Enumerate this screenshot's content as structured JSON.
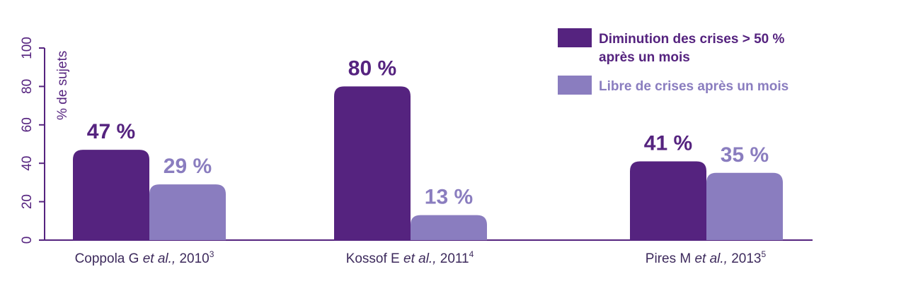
{
  "chart_data": {
    "type": "bar",
    "ylabel": "% de sujets",
    "ylim": [
      0,
      100
    ],
    "yticks": [
      "0",
      "20",
      "40",
      "60",
      "80",
      "100"
    ],
    "grid": false,
    "legend_position": "top-right",
    "categories": [
      {
        "author": "Coppola G",
        "etal": "et al.,",
        "year": "2010",
        "ref": "3"
      },
      {
        "author": "Kossof E",
        "etal": "et al.,",
        "year": "2011",
        "ref": "4"
      },
      {
        "author": "Pires M",
        "etal": "et al.,",
        "year": "2013",
        "ref": "5"
      }
    ],
    "series": [
      {
        "name": "Diminution des crises > 50 % après un mois",
        "name_lines": [
          "Diminution des crises > 50 %",
          "après un mois"
        ],
        "color": "#55237f",
        "values": [
          47,
          80,
          41
        ],
        "labels": [
          "47 %",
          "80 %",
          "41 %"
        ]
      },
      {
        "name": "Libre de crises après un mois",
        "name_lines": [
          "Libre de crises après un mois"
        ],
        "color": "#8a7dbf",
        "values": [
          29,
          13,
          35
        ],
        "labels": [
          "29 %",
          "13 %",
          "35 %"
        ]
      }
    ]
  },
  "colors": {
    "axis": "#55237f",
    "text": "#3d2a5c"
  }
}
